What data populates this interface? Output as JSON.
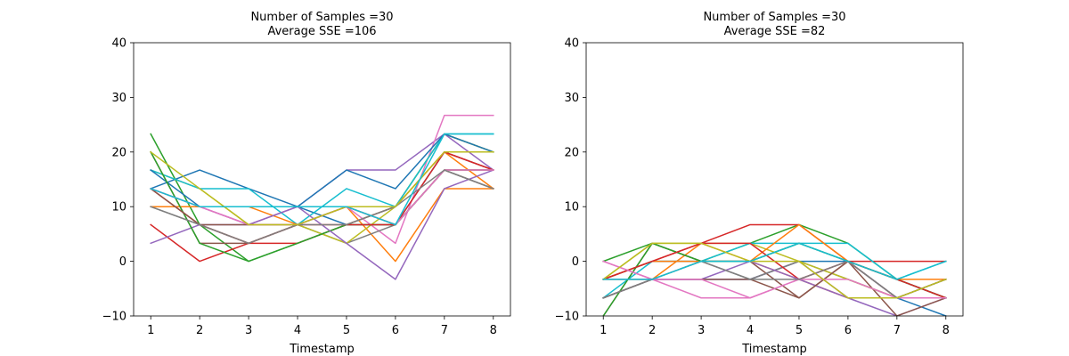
{
  "figure": {
    "background": "#ffffff"
  },
  "chart_data": [
    {
      "type": "line",
      "title": [
        "Number of Samples =30",
        "Average SSE =106"
      ],
      "xlabel": "Timestamp",
      "ylabel": "",
      "x": [
        1,
        2,
        3,
        4,
        5,
        6,
        7,
        8
      ],
      "xlim": [
        0.65,
        8.35
      ],
      "ylim": [
        -10,
        40
      ],
      "xticks": [
        1,
        2,
        3,
        4,
        5,
        6,
        7,
        8
      ],
      "yticks": [
        -10,
        0,
        10,
        20,
        30,
        40
      ],
      "grid": false,
      "series": [
        {
          "color": "#1f77b4",
          "values": [
            13.3,
            16.7,
            13.3,
            10,
            6.7,
            6.7,
            20,
            16.7
          ]
        },
        {
          "color": "#ff7f0e",
          "values": [
            10,
            10,
            10,
            10,
            10,
            0,
            13.3,
            13.3
          ]
        },
        {
          "color": "#2ca02c",
          "values": [
            23.3,
            6.7,
            0,
            3.3,
            6.7,
            10,
            23.3,
            20
          ]
        },
        {
          "color": "#d62728",
          "values": [
            6.7,
            0,
            3.3,
            3.3,
            6.7,
            10,
            20,
            16.7
          ]
        },
        {
          "color": "#9467bd",
          "values": [
            3.3,
            6.7,
            6.7,
            10,
            16.7,
            16.7,
            23.3,
            16.7
          ]
        },
        {
          "color": "#8c564b",
          "values": [
            20,
            3.3,
            3.3,
            6.7,
            10,
            6.7,
            16.7,
            13.3
          ]
        },
        {
          "color": "#e377c2",
          "values": [
            13.3,
            10,
            6.7,
            10,
            10,
            3.3,
            26.7,
            26.7
          ]
        },
        {
          "color": "#7f7f7f",
          "values": [
            10,
            6.7,
            3.3,
            6.7,
            3.3,
            6.7,
            16.7,
            13.3
          ]
        },
        {
          "color": "#bcbd22",
          "values": [
            16.7,
            13.3,
            6.7,
            6.7,
            3.3,
            10,
            23.3,
            20
          ]
        },
        {
          "color": "#17becf",
          "values": [
            16.7,
            13.3,
            13.3,
            6.7,
            13.3,
            10,
            23.3,
            23.3
          ]
        },
        {
          "color": "#1f77b4",
          "values": [
            16.7,
            10,
            10,
            10,
            16.7,
            13.3,
            23.3,
            20
          ]
        },
        {
          "color": "#ff7f0e",
          "values": [
            10,
            10,
            10,
            6.7,
            10,
            10,
            20,
            13.3
          ]
        },
        {
          "color": "#2ca02c",
          "values": [
            20,
            3.3,
            0,
            3.3,
            6.7,
            6.7,
            16.7,
            16.7
          ]
        },
        {
          "color": "#d62728",
          "values": [
            13.3,
            6.7,
            3.3,
            6.7,
            6.7,
            6.7,
            20,
            16.7
          ]
        },
        {
          "color": "#9467bd",
          "values": [
            13.3,
            10,
            6.7,
            10,
            3.3,
            -3.3,
            13.3,
            16.7
          ]
        },
        {
          "color": "#8c564b",
          "values": [
            13.3,
            6.7,
            6.7,
            6.7,
            10,
            6.7,
            16.7,
            16.7
          ]
        },
        {
          "color": "#e377c2",
          "values": [
            13.3,
            10,
            6.7,
            6.7,
            10,
            6.7,
            16.7,
            16.7
          ]
        },
        {
          "color": "#7f7f7f",
          "values": [
            10,
            6.7,
            3.3,
            6.7,
            6.7,
            10,
            16.7,
            13.3
          ]
        },
        {
          "color": "#bcbd22",
          "values": [
            20,
            13.3,
            6.7,
            6.7,
            10,
            10,
            20,
            20
          ]
        },
        {
          "color": "#17becf",
          "values": [
            13.3,
            10,
            10,
            10,
            10,
            6.7,
            23.3,
            23.3
          ]
        }
      ]
    },
    {
      "type": "line",
      "title": [
        "Number of Samples =30",
        "Average SSE =82"
      ],
      "xlabel": "Timestamp",
      "ylabel": "",
      "x": [
        1,
        2,
        3,
        4,
        5,
        6,
        7,
        8
      ],
      "xlim": [
        0.65,
        8.35
      ],
      "ylim": [
        -10,
        40
      ],
      "xticks": [
        1,
        2,
        3,
        4,
        5,
        6,
        7,
        8
      ],
      "yticks": [
        -10,
        0,
        10,
        20,
        30,
        40
      ],
      "grid": false,
      "series": [
        {
          "color": "#1f77b4",
          "values": [
            -6.7,
            -3.3,
            -3.3,
            -3.3,
            0,
            0,
            -6.7,
            -10
          ]
        },
        {
          "color": "#ff7f0e",
          "values": [
            -3.3,
            -3.3,
            3.3,
            0,
            -3.3,
            -6.7,
            -6.7,
            -3.3
          ]
        },
        {
          "color": "#2ca02c",
          "values": [
            0,
            3.3,
            0,
            3.3,
            6.7,
            3.3,
            -3.3,
            -6.7
          ]
        },
        {
          "color": "#d62728",
          "values": [
            -3.3,
            0,
            3.3,
            6.7,
            6.7,
            0,
            0,
            0
          ]
        },
        {
          "color": "#9467bd",
          "values": [
            -6.7,
            -3.3,
            -3.3,
            -3.3,
            0,
            -6.7,
            -10,
            -6.7
          ]
        },
        {
          "color": "#8c564b",
          "values": [
            -10,
            3.3,
            0,
            0,
            -6.7,
            0,
            -10,
            -6.7
          ]
        },
        {
          "color": "#e377c2",
          "values": [
            0,
            -3.3,
            -6.7,
            -6.7,
            -3.3,
            0,
            -6.7,
            -6.7
          ]
        },
        {
          "color": "#7f7f7f",
          "values": [
            -6.7,
            -3.3,
            0,
            -3.3,
            0,
            -3.3,
            -6.7,
            -3.3
          ]
        },
        {
          "color": "#bcbd22",
          "values": [
            -3.3,
            3.3,
            3.3,
            3.3,
            0,
            -3.3,
            -6.7,
            -3.3
          ]
        },
        {
          "color": "#17becf",
          "values": [
            -6.7,
            0,
            0,
            3.3,
            3.3,
            3.3,
            -3.3,
            0
          ]
        },
        {
          "color": "#1f77b4",
          "values": [
            -3.3,
            0,
            0,
            0,
            3.3,
            0,
            -3.3,
            -6.7
          ]
        },
        {
          "color": "#ff7f0e",
          "values": [
            -3.3,
            0,
            0,
            0,
            6.7,
            0,
            -3.3,
            -3.3
          ]
        },
        {
          "color": "#2ca02c",
          "values": [
            -10,
            3.3,
            0,
            0,
            3.3,
            0,
            -3.3,
            -6.7
          ]
        },
        {
          "color": "#d62728",
          "values": [
            -3.3,
            0,
            3.3,
            3.3,
            -3.3,
            0,
            -3.3,
            -6.7
          ]
        },
        {
          "color": "#9467bd",
          "values": [
            -3.3,
            -3.3,
            -3.3,
            0,
            -3.3,
            -6.7,
            -6.7,
            -3.3
          ]
        },
        {
          "color": "#8c564b",
          "values": [
            -6.7,
            -3.3,
            -3.3,
            -3.3,
            -6.7,
            0,
            -6.7,
            -3.3
          ]
        },
        {
          "color": "#e377c2",
          "values": [
            0,
            -3.3,
            -3.3,
            -6.7,
            -3.3,
            -3.3,
            -6.7,
            -6.7
          ]
        },
        {
          "color": "#7f7f7f",
          "values": [
            -6.7,
            -3.3,
            0,
            -3.3,
            -3.3,
            0,
            -6.7,
            -3.3
          ]
        },
        {
          "color": "#bcbd22",
          "values": [
            -3.3,
            3.3,
            3.3,
            0,
            0,
            -6.7,
            -6.7,
            -3.3
          ]
        },
        {
          "color": "#17becf",
          "values": [
            -3.3,
            -3.3,
            0,
            0,
            3.3,
            0,
            -3.3,
            0
          ]
        }
      ]
    }
  ]
}
